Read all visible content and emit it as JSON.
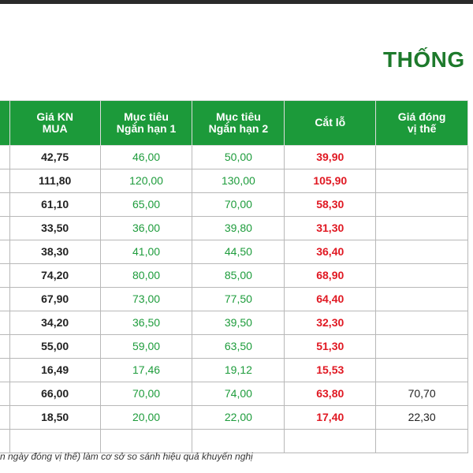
{
  "title": "THỐNG",
  "headers": {
    "buy": "Giá KN\nMUA",
    "target1": "Mục tiêu\nNgắn hạn 1",
    "target2": "Mục tiêu\nNgắn hạn 2",
    "stop": "Cắt lỗ",
    "close": "Giá đóng\nvị thế"
  },
  "rows": [
    {
      "buy": "42,75",
      "target1": "46,00",
      "target2": "50,00",
      "stop": "39,90",
      "close": ""
    },
    {
      "buy": "111,80",
      "target1": "120,00",
      "target2": "130,00",
      "stop": "105,90",
      "close": ""
    },
    {
      "buy": "61,10",
      "target1": "65,00",
      "target2": "70,00",
      "stop": "58,30",
      "close": ""
    },
    {
      "buy": "33,50",
      "target1": "36,00",
      "target2": "39,80",
      "stop": "31,30",
      "close": ""
    },
    {
      "buy": "38,30",
      "target1": "41,00",
      "target2": "44,50",
      "stop": "36,40",
      "close": ""
    },
    {
      "buy": "74,20",
      "target1": "80,00",
      "target2": "85,00",
      "stop": "68,90",
      "close": ""
    },
    {
      "buy": "67,90",
      "target1": "73,00",
      "target2": "77,50",
      "stop": "64,40",
      "close": ""
    },
    {
      "buy": "34,20",
      "target1": "36,50",
      "target2": "39,50",
      "stop": "32,30",
      "close": ""
    },
    {
      "buy": "55,00",
      "target1": "59,00",
      "target2": "63,50",
      "stop": "51,30",
      "close": ""
    },
    {
      "buy": "16,49",
      "target1": "17,46",
      "target2": "19,12",
      "stop": "15,53",
      "close": ""
    },
    {
      "buy": "66,00",
      "target1": "70,00",
      "target2": "74,00",
      "stop": "63,80",
      "close": "70,70"
    },
    {
      "buy": "18,50",
      "target1": "20,00",
      "target2": "22,00",
      "stop": "17,40",
      "close": "22,30"
    }
  ],
  "footnote": "n ngày đóng vị thế) làm cơ sở so sánh hiệu quả khuyến nghị",
  "colors": {
    "header_bg": "#1c9a3a",
    "title": "#1e7a2c",
    "target": "#1e9c3c",
    "stop": "#e01822"
  }
}
